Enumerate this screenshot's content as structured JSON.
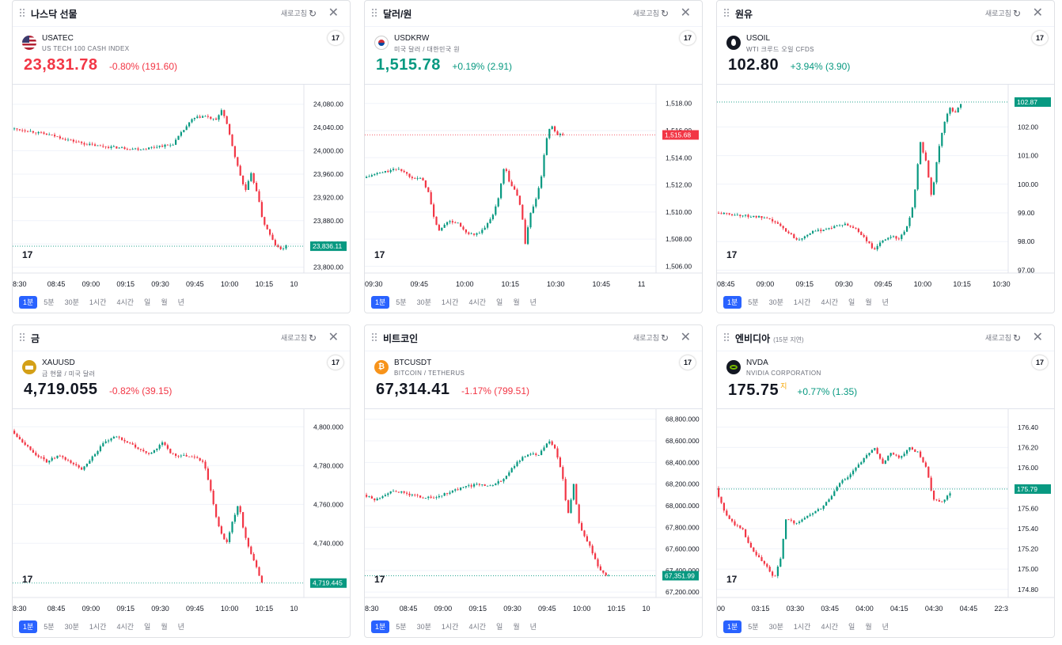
{
  "colors": {
    "up": "#089981",
    "down": "#f23645",
    "grid": "#f0f3fa",
    "axisText": "#131722",
    "accent": "#2962ff"
  },
  "panels": [
    {
      "title": "나스닥 선물",
      "delay": "",
      "refresh": "새로고침",
      "symbol": "USATEC",
      "desc": "US TECH 100 CASH INDEX",
      "icon": "us-flag",
      "iconColor": "#3c5aa6",
      "price": "23,831.78",
      "priceSup": "",
      "change": "-0.80% (191.60)",
      "dir": "down",
      "yTicks": [
        "24,080.00",
        "24,040.00",
        "24,000.00",
        "23,960.00",
        "23,920.00",
        "23,880.00",
        "23,840.00",
        "23,800.00"
      ],
      "yMin": 23790,
      "yMax": 24100,
      "yTickVals": [
        24080,
        24040,
        24000,
        23960,
        23920,
        23880,
        23840,
        23800
      ],
      "xTicks": [
        "8:30",
        "08:45",
        "09:00",
        "09:15",
        "09:30",
        "09:45",
        "10:00",
        "10:15",
        "10"
      ],
      "priceLabel": "23,836.11",
      "priceLabelVal": 23836.11,
      "labelDir": "up",
      "path": [
        [
          0,
          24038
        ],
        [
          0.05,
          24035
        ],
        [
          0.1,
          24030
        ],
        [
          0.15,
          24025
        ],
        [
          0.2,
          24018
        ],
        [
          0.25,
          24012
        ],
        [
          0.3,
          24008
        ],
        [
          0.35,
          24006
        ],
        [
          0.4,
          24004
        ],
        [
          0.45,
          24003
        ],
        [
          0.5,
          24008
        ],
        [
          0.55,
          24010
        ],
        [
          0.58,
          24030
        ],
        [
          0.62,
          24055
        ],
        [
          0.66,
          24060
        ],
        [
          0.7,
          24052
        ],
        [
          0.72,
          24072
        ],
        [
          0.74,
          24040
        ],
        [
          0.77,
          23980
        ],
        [
          0.8,
          23930
        ],
        [
          0.82,
          23960
        ],
        [
          0.84,
          23930
        ],
        [
          0.86,
          23880
        ],
        [
          0.88,
          23860
        ],
        [
          0.9,
          23840
        ],
        [
          0.92,
          23830
        ],
        [
          0.94,
          23836
        ]
      ]
    },
    {
      "title": "달러/원",
      "delay": "",
      "refresh": "새로고침",
      "symbol": "USDKRW",
      "desc": "미국 달러 / 대한민국 원",
      "icon": "kr-flag",
      "iconColor": "#cd2e3a",
      "price": "1,515.78",
      "priceSup": "",
      "change": "+0.19% (2.91)",
      "dir": "up",
      "yTicks": [
        "1,518.00",
        "1,516.00",
        "1,514.00",
        "1,512.00",
        "1,510.00",
        "1,508.00",
        "1,506.00"
      ],
      "yMin": 1505.5,
      "yMax": 1518.8,
      "yTickVals": [
        1518,
        1516,
        1514,
        1512,
        1510,
        1508,
        1506
      ],
      "xTicks": [
        "09:30",
        "09:45",
        "10:00",
        "10:15",
        "10:30",
        "10:45",
        "11"
      ],
      "priceLabel": "1,515.68",
      "priceLabelVal": 1515.68,
      "labelDir": "down",
      "path": [
        [
          0,
          1512.5
        ],
        [
          0.04,
          1512.8
        ],
        [
          0.08,
          1513
        ],
        [
          0.12,
          1513.2
        ],
        [
          0.16,
          1512.6
        ],
        [
          0.2,
          1512.4
        ],
        [
          0.22,
          1511.5
        ],
        [
          0.24,
          1509.5
        ],
        [
          0.26,
          1508.5
        ],
        [
          0.28,
          1509.3
        ],
        [
          0.32,
          1509.2
        ],
        [
          0.35,
          1508.4
        ],
        [
          0.38,
          1508.3
        ],
        [
          0.41,
          1508.7
        ],
        [
          0.44,
          1509.8
        ],
        [
          0.46,
          1511
        ],
        [
          0.48,
          1513.5
        ],
        [
          0.5,
          1512
        ],
        [
          0.52,
          1511.5
        ],
        [
          0.54,
          1510
        ],
        [
          0.55,
          1507.5
        ],
        [
          0.57,
          1510
        ],
        [
          0.59,
          1511
        ],
        [
          0.61,
          1513
        ],
        [
          0.62,
          1515
        ],
        [
          0.64,
          1516.5
        ],
        [
          0.66,
          1515.7
        ],
        [
          0.68,
          1515.7
        ]
      ]
    },
    {
      "title": "원유",
      "delay": "",
      "refresh": "새로고침",
      "symbol": "USOIL",
      "desc": "WTI 크루드 오일 CFDS",
      "icon": "oil-drop",
      "iconColor": "#131722",
      "price": "102.80",
      "priceSup": "",
      "change": "+3.94% (3.90)",
      "dir": "up",
      "yTicks": [
        "102.00",
        "101.00",
        "100.00",
        "99.00",
        "98.00",
        "97.00"
      ],
      "yMin": 96.9,
      "yMax": 103.2,
      "yTickVals": [
        102,
        101,
        100,
        99,
        98,
        97
      ],
      "xTicks": [
        "08:45",
        "09:00",
        "09:15",
        "09:30",
        "09:45",
        "10:00",
        "10:15",
        "10:30"
      ],
      "priceLabel": "102.87",
      "priceLabelVal": 102.87,
      "labelDir": "up",
      "path": [
        [
          0,
          99
        ],
        [
          0.05,
          98.95
        ],
        [
          0.1,
          98.9
        ],
        [
          0.15,
          98.85
        ],
        [
          0.2,
          98.7
        ],
        [
          0.25,
          98.3
        ],
        [
          0.28,
          98.05
        ],
        [
          0.32,
          98.3
        ],
        [
          0.36,
          98.4
        ],
        [
          0.4,
          98.5
        ],
        [
          0.44,
          98.6
        ],
        [
          0.48,
          98.45
        ],
        [
          0.52,
          98.0
        ],
        [
          0.54,
          97.7
        ],
        [
          0.57,
          98.0
        ],
        [
          0.6,
          98.2
        ],
        [
          0.63,
          98.1
        ],
        [
          0.66,
          98.6
        ],
        [
          0.68,
          99.5
        ],
        [
          0.7,
          101.5
        ],
        [
          0.72,
          100.8
        ],
        [
          0.74,
          99.5
        ],
        [
          0.76,
          101
        ],
        [
          0.78,
          102
        ],
        [
          0.8,
          102.7
        ],
        [
          0.82,
          102.5
        ],
        [
          0.84,
          102.8
        ]
      ]
    },
    {
      "title": "금",
      "delay": "",
      "refresh": "새로고침",
      "symbol": "XAUUSD",
      "desc": "금 현물 / 미국 달러",
      "icon": "gold",
      "iconColor": "#d4a017",
      "price": "4,719.055",
      "priceSup": "",
      "change": "-0.82% (39.15)",
      "dir": "down",
      "yTicks": [
        "4,800.000",
        "4,780.000",
        "4,760.000",
        "4,740.000"
      ],
      "yMin": 4712,
      "yMax": 4805,
      "yTickVals": [
        4800,
        4780,
        4760,
        4740
      ],
      "xTicks": [
        "8:30",
        "08:45",
        "09:00",
        "09:15",
        "09:30",
        "09:45",
        "10:00",
        "10:15",
        "10"
      ],
      "priceLabel": "4,719.445",
      "priceLabelVal": 4719.445,
      "labelDir": "up",
      "path": [
        [
          0,
          4798
        ],
        [
          0.04,
          4792
        ],
        [
          0.08,
          4786
        ],
        [
          0.12,
          4782
        ],
        [
          0.16,
          4785
        ],
        [
          0.2,
          4782
        ],
        [
          0.24,
          4778
        ],
        [
          0.28,
          4785
        ],
        [
          0.32,
          4792
        ],
        [
          0.36,
          4795
        ],
        [
          0.4,
          4792
        ],
        [
          0.44,
          4788
        ],
        [
          0.48,
          4786
        ],
        [
          0.52,
          4792
        ],
        [
          0.55,
          4786
        ],
        [
          0.58,
          4785
        ],
        [
          0.62,
          4785
        ],
        [
          0.66,
          4782
        ],
        [
          0.68,
          4770
        ],
        [
          0.7,
          4755
        ],
        [
          0.72,
          4745
        ],
        [
          0.74,
          4740
        ],
        [
          0.76,
          4752
        ],
        [
          0.78,
          4760
        ],
        [
          0.8,
          4745
        ],
        [
          0.82,
          4735
        ],
        [
          0.84,
          4728
        ],
        [
          0.86,
          4720
        ]
      ]
    },
    {
      "title": "비트코인",
      "delay": "",
      "refresh": "새로고침",
      "symbol": "BTCUSDT",
      "desc": "BITCOIN / TETHERUS",
      "icon": "btc",
      "iconColor": "#f7931a",
      "price": "67,314.41",
      "priceSup": "",
      "change": "-1.17% (799.51)",
      "dir": "down",
      "yTicks": [
        "68,800.000",
        "68,600.000",
        "68,400.000",
        "68,200.000",
        "68,000.000",
        "67,800.000",
        "67,600.000",
        "67,400.000",
        "67,200.000"
      ],
      "yMin": 67150,
      "yMax": 68820,
      "yTickVals": [
        68800,
        68600,
        68400,
        68200,
        68000,
        67800,
        67600,
        67400,
        67200
      ],
      "xTicks": [
        "8:30",
        "08:45",
        "09:00",
        "09:15",
        "09:30",
        "09:45",
        "10:00",
        "10:15",
        "10"
      ],
      "priceLabel": "67,351.99",
      "priceLabelVal": 67351.99,
      "labelDir": "up",
      "path": [
        [
          0,
          68100
        ],
        [
          0.04,
          68050
        ],
        [
          0.08,
          68120
        ],
        [
          0.12,
          68130
        ],
        [
          0.16,
          68100
        ],
        [
          0.2,
          68080
        ],
        [
          0.24,
          68070
        ],
        [
          0.28,
          68110
        ],
        [
          0.32,
          68150
        ],
        [
          0.36,
          68180
        ],
        [
          0.4,
          68200
        ],
        [
          0.44,
          68180
        ],
        [
          0.48,
          68250
        ],
        [
          0.52,
          68380
        ],
        [
          0.56,
          68480
        ],
        [
          0.6,
          68470
        ],
        [
          0.62,
          68550
        ],
        [
          0.64,
          68600
        ],
        [
          0.66,
          68500
        ],
        [
          0.68,
          68300
        ],
        [
          0.7,
          67900
        ],
        [
          0.72,
          68200
        ],
        [
          0.74,
          67800
        ],
        [
          0.76,
          67700
        ],
        [
          0.78,
          67600
        ],
        [
          0.8,
          67450
        ],
        [
          0.82,
          67380
        ],
        [
          0.84,
          67350
        ]
      ]
    },
    {
      "title": "엔비디아",
      "delay": "(15분 지연)",
      "refresh": "새로고침",
      "symbol": "NVDA",
      "desc": "NVIDIA CORPORATION",
      "icon": "nvda",
      "iconColor": "#76b900",
      "price": "175.75",
      "priceSup": "지",
      "change": "+0.77% (1.35)",
      "dir": "up",
      "yTicks": [
        "176.40",
        "176.20",
        "176.00",
        "175.80",
        "175.60",
        "175.40",
        "175.20",
        "175.00",
        "174.80"
      ],
      "yMin": 174.72,
      "yMax": 176.5,
      "yTickVals": [
        176.4,
        176.2,
        176,
        175.8,
        175.6,
        175.4,
        175.2,
        175,
        174.8
      ],
      "xTicks": [
        "00",
        "03:15",
        "03:30",
        "03:45",
        "04:00",
        "04:15",
        "04:30",
        "04:45",
        "22:3"
      ],
      "priceLabel": "175.79",
      "priceLabelVal": 175.79,
      "labelDir": "up",
      "path": [
        [
          0,
          175.8
        ],
        [
          0.03,
          175.55
        ],
        [
          0.06,
          175.45
        ],
        [
          0.09,
          175.4
        ],
        [
          0.12,
          175.2
        ],
        [
          0.15,
          175.1
        ],
        [
          0.18,
          175.0
        ],
        [
          0.2,
          174.9
        ],
        [
          0.22,
          175.1
        ],
        [
          0.24,
          175.5
        ],
        [
          0.27,
          175.45
        ],
        [
          0.3,
          175.5
        ],
        [
          0.33,
          175.55
        ],
        [
          0.36,
          175.6
        ],
        [
          0.39,
          175.7
        ],
        [
          0.42,
          175.85
        ],
        [
          0.45,
          175.9
        ],
        [
          0.48,
          176.0
        ],
        [
          0.51,
          176.1
        ],
        [
          0.54,
          176.2
        ],
        [
          0.57,
          176.05
        ],
        [
          0.6,
          176.15
        ],
        [
          0.63,
          176.1
        ],
        [
          0.66,
          176.2
        ],
        [
          0.69,
          176.15
        ],
        [
          0.72,
          176.0
        ],
        [
          0.74,
          175.7
        ],
        [
          0.77,
          175.65
        ],
        [
          0.8,
          175.75
        ]
      ]
    }
  ],
  "timeframes": [
    "1분",
    "5분",
    "30분",
    "1시간",
    "4시간",
    "일",
    "월",
    "년"
  ],
  "activeTimeframe": "1분"
}
